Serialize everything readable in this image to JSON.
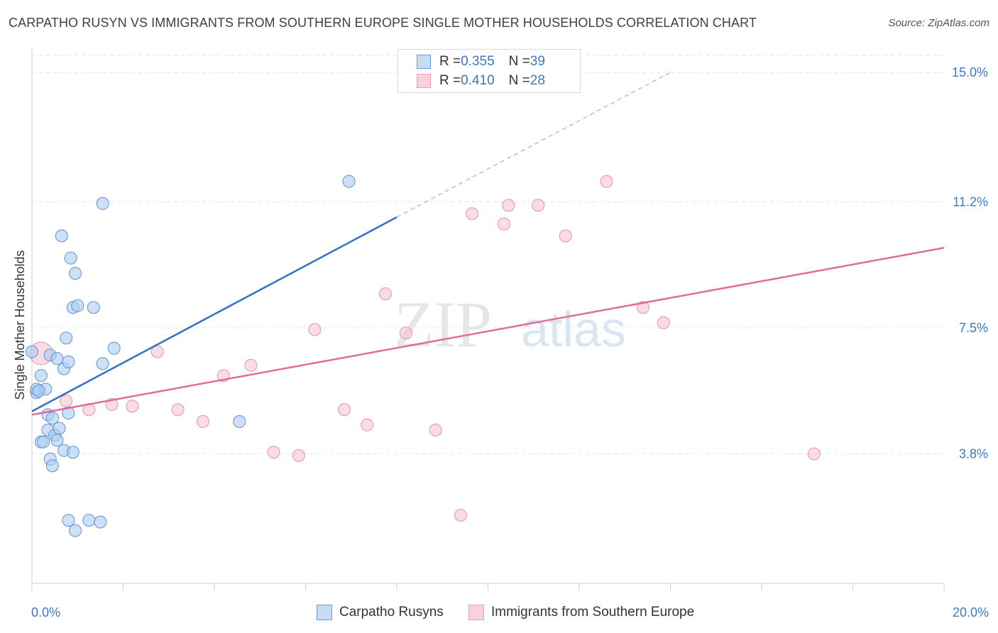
{
  "title": "CARPATHO RUSYN VS IMMIGRANTS FROM SOUTHERN EUROPE SINGLE MOTHER HOUSEHOLDS CORRELATION CHART",
  "source": "Source: ZipAtlas.com",
  "watermark": {
    "zip": "ZIP",
    "atlas": "atlas"
  },
  "colors": {
    "blue_fill": "#aecbf0",
    "blue_stroke": "#5b93d6",
    "blue_line": "#2f72c6",
    "pink_fill": "#f6bfd0",
    "pink_stroke": "#e891ad",
    "pink_line": "#e36b95",
    "value_text": "#3a78c9",
    "grid": "#e3e3e3"
  },
  "legend": {
    "rows": [
      {
        "r_label": "R = ",
        "r_value": "0.355",
        "n_label": "N = ",
        "n_value": "39"
      },
      {
        "r_label": "R = ",
        "r_value": "0.410",
        "n_label": "N = ",
        "n_value": "28"
      }
    ]
  },
  "bottom_legend": {
    "series_a": "Carpatho Rusyns",
    "series_b": "Immigrants from Southern Europe"
  },
  "chart_data": {
    "type": "scatter",
    "title": "CARPATHO RUSYN VS IMMIGRANTS FROM SOUTHERN EUROPE SINGLE MOTHER HOUSEHOLDS CORRELATION CHART",
    "xlabel": "",
    "ylabel": "Single Mother Households",
    "xlim": [
      0,
      20
    ],
    "ylim": [
      0,
      15.5
    ],
    "x_tick_labels": [
      "0.0%",
      "20.0%"
    ],
    "y_ticks": [
      3.8,
      7.5,
      11.2,
      15.0
    ],
    "y_tick_labels": [
      "3.8%",
      "7.5%",
      "11.2%",
      "15.0%"
    ],
    "grid": true,
    "series": [
      {
        "name": "Carpatho Rusyns",
        "r": 0.355,
        "n": 39,
        "trend": {
          "x_start": 0.0,
          "y_start": 5.05,
          "x_solid_end": 8.0,
          "y_solid_end": 10.75,
          "x_dash_end": 14.0,
          "y_dash_end": 15.0
        },
        "points": [
          [
            0.0,
            6.8
          ],
          [
            0.1,
            5.6
          ],
          [
            0.1,
            5.7
          ],
          [
            0.2,
            6.1
          ],
          [
            0.3,
            5.7
          ],
          [
            0.35,
            4.95
          ],
          [
            0.35,
            4.5
          ],
          [
            0.2,
            4.15
          ],
          [
            0.25,
            4.15
          ],
          [
            0.4,
            3.65
          ],
          [
            0.45,
            3.45
          ],
          [
            0.4,
            6.7
          ],
          [
            0.45,
            4.85
          ],
          [
            0.5,
            4.35
          ],
          [
            0.55,
            4.2
          ],
          [
            0.6,
            4.55
          ],
          [
            0.7,
            3.9
          ],
          [
            0.55,
            6.6
          ],
          [
            0.7,
            6.3
          ],
          [
            0.8,
            6.5
          ],
          [
            0.8,
            5.0
          ],
          [
            0.9,
            3.85
          ],
          [
            0.8,
            1.85
          ],
          [
            0.95,
            1.55
          ],
          [
            1.25,
            1.85
          ],
          [
            1.5,
            1.8
          ],
          [
            0.85,
            9.55
          ],
          [
            0.65,
            10.2
          ],
          [
            0.75,
            7.2
          ],
          [
            0.9,
            8.1
          ],
          [
            1.0,
            8.15
          ],
          [
            0.95,
            9.1
          ],
          [
            1.35,
            8.1
          ],
          [
            1.55,
            6.45
          ],
          [
            1.8,
            6.9
          ],
          [
            1.55,
            11.15
          ],
          [
            4.55,
            4.75
          ],
          [
            6.95,
            11.8
          ],
          [
            0.15,
            5.65
          ]
        ]
      },
      {
        "name": "Immigrants from Southern Europe",
        "r": 0.41,
        "n": 28,
        "trend": {
          "x_start": 0.0,
          "y_start": 4.95,
          "x_end": 20.0,
          "y_end": 9.85
        },
        "points": [
          [
            0.2,
            6.75
          ],
          [
            0.75,
            5.35
          ],
          [
            1.25,
            5.1
          ],
          [
            1.75,
            5.25
          ],
          [
            2.2,
            5.2
          ],
          [
            2.75,
            6.8
          ],
          [
            3.2,
            5.1
          ],
          [
            3.75,
            4.75
          ],
          [
            4.2,
            6.1
          ],
          [
            4.8,
            6.4
          ],
          [
            5.3,
            3.85
          ],
          [
            5.85,
            3.75
          ],
          [
            6.2,
            7.45
          ],
          [
            6.85,
            5.1
          ],
          [
            7.35,
            4.65
          ],
          [
            7.75,
            8.5
          ],
          [
            8.2,
            7.35
          ],
          [
            8.85,
            4.5
          ],
          [
            9.4,
            2.0
          ],
          [
            9.65,
            10.85
          ],
          [
            10.35,
            10.55
          ],
          [
            10.45,
            11.1
          ],
          [
            11.1,
            11.1
          ],
          [
            11.7,
            10.2
          ],
          [
            12.6,
            11.8
          ],
          [
            13.4,
            8.1
          ],
          [
            13.85,
            7.65
          ],
          [
            17.15,
            3.8
          ]
        ]
      }
    ]
  }
}
